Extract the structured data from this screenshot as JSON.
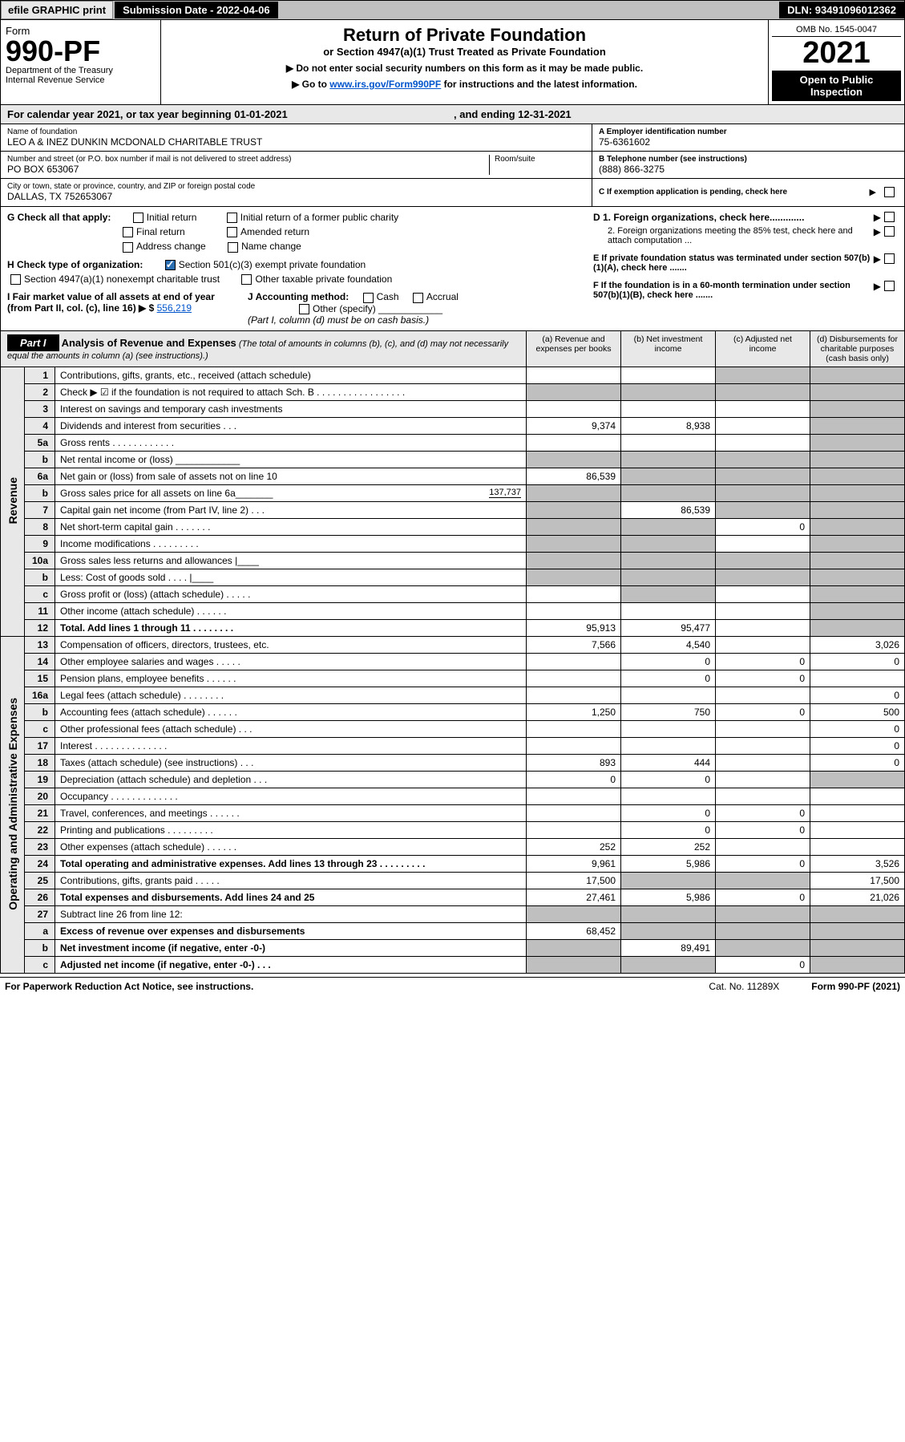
{
  "topbar": {
    "efile": "efile GRAPHIC print",
    "subdate": "Submission Date - 2022-04-06",
    "dln": "DLN: 93491096012362"
  },
  "header": {
    "form_label": "Form",
    "form_no": "990-PF",
    "dept": "Department of the Treasury",
    "irs": "Internal Revenue Service",
    "title": "Return of Private Foundation",
    "subtitle": "or Section 4947(a)(1) Trust Treated as Private Foundation",
    "note1": "▶ Do not enter social security numbers on this form as it may be made public.",
    "note2_pre": "▶ Go to ",
    "note2_link": "www.irs.gov/Form990PF",
    "note2_post": " for instructions and the latest information.",
    "omb": "OMB No. 1545-0047",
    "year": "2021",
    "inspect": "Open to Public Inspection"
  },
  "calyear": {
    "text_pre": "For calendar year 2021, or tax year beginning ",
    "begin": "01-01-2021",
    "text_mid": ", and ending ",
    "end": "12-31-2021"
  },
  "info": {
    "name_lbl": "Name of foundation",
    "name": "LEO A & INEZ DUNKIN MCDONALD CHARITABLE TRUST",
    "addr_lbl": "Number and street (or P.O. box number if mail is not delivered to street address)",
    "addr": "PO BOX 653067",
    "room_lbl": "Room/suite",
    "city_lbl": "City or town, state or province, country, and ZIP or foreign postal code",
    "city": "DALLAS, TX  752653067",
    "a_lbl": "A Employer identification number",
    "a_val": "75-6361602",
    "b_lbl": "B Telephone number (see instructions)",
    "b_val": "(888) 866-3275",
    "c_lbl": "C If exemption application is pending, check here"
  },
  "sectG": {
    "g": "G Check all that apply:",
    "init": "Initial return",
    "initf": "Initial return of a former public charity",
    "final": "Final return",
    "amend": "Amended return",
    "addr": "Address change",
    "namec": "Name change",
    "h": "H Check type of organization:",
    "h1": "Section 501(c)(3) exempt private foundation",
    "h2": "Section 4947(a)(1) nonexempt charitable trust",
    "h3": "Other taxable private foundation",
    "i": "I Fair market value of all assets at end of year (from Part II, col. (c), line 16)  ▶ $",
    "i_val": "556,219",
    "j": "J Accounting method:",
    "j1": "Cash",
    "j2": "Accrual",
    "j3": "Other (specify)",
    "j_note": "(Part I, column (d) must be on cash basis.)",
    "d1": "D 1. Foreign organizations, check here.............",
    "d2": "2. Foreign organizations meeting the 85% test, check here and attach computation ...",
    "e": "E If private foundation status was terminated under section 507(b)(1)(A), check here .......",
    "f": "F If the foundation is in a 60-month termination under section 507(b)(1)(B), check here ......."
  },
  "part1": {
    "hdr": "Part I",
    "title": "Analysis of Revenue and Expenses",
    "title_note": " (The total of amounts in columns (b), (c), and (d) may not necessarily equal the amounts in column (a) (see instructions).)",
    "col_a": "(a) Revenue and expenses per books",
    "col_b": "(b) Net investment income",
    "col_c": "(c) Adjusted net income",
    "col_d": "(d) Disbursements for charitable purposes (cash basis only)",
    "sidecats": {
      "rev": "Revenue",
      "exp": "Operating and Administrative Expenses"
    }
  },
  "rows": [
    {
      "cat": "rev",
      "ln": "1",
      "desc": "Contributions, gifts, grants, etc., received (attach schedule)",
      "a": "",
      "b": "",
      "c": "s",
      "d": "s"
    },
    {
      "cat": "rev",
      "ln": "2",
      "desc": "Check ▶ ☑ if the foundation is not required to attach Sch. B  .  .  .  .  .  .  .  .  .  .  .  .  .  .  .  .  .",
      "a": "s",
      "b": "s",
      "c": "s",
      "d": "s",
      "bold_not": true
    },
    {
      "cat": "rev",
      "ln": "3",
      "desc": "Interest on savings and temporary cash investments",
      "a": "",
      "b": "",
      "c": "",
      "d": "s"
    },
    {
      "cat": "rev",
      "ln": "4",
      "desc": "Dividends and interest from securities  .  .  .",
      "a": "9,374",
      "b": "8,938",
      "c": "",
      "d": "s"
    },
    {
      "cat": "rev",
      "ln": "5a",
      "desc": "Gross rents  .  .  .  .  .  .  .  .  .  .  .  .",
      "a": "",
      "b": "",
      "c": "",
      "d": "s"
    },
    {
      "cat": "rev",
      "ln": "b",
      "desc": "Net rental income or (loss)  ____________",
      "a": "s",
      "b": "s",
      "c": "s",
      "d": "s"
    },
    {
      "cat": "rev",
      "ln": "6a",
      "desc": "Net gain or (loss) from sale of assets not on line 10",
      "a": "86,539",
      "b": "s",
      "c": "s",
      "d": "s"
    },
    {
      "cat": "rev",
      "ln": "b",
      "desc": "Gross sales price for all assets on line 6a_______",
      "inline": "137,737",
      "a": "s",
      "b": "s",
      "c": "s",
      "d": "s"
    },
    {
      "cat": "rev",
      "ln": "7",
      "desc": "Capital gain net income (from Part IV, line 2)  .  .  .",
      "a": "s",
      "b": "86,539",
      "c": "s",
      "d": "s"
    },
    {
      "cat": "rev",
      "ln": "8",
      "desc": "Net short-term capital gain  .  .  .  .  .  .  .",
      "a": "s",
      "b": "s",
      "c": "0",
      "d": "s"
    },
    {
      "cat": "rev",
      "ln": "9",
      "desc": "Income modifications  .  .  .  .  .  .  .  .  .",
      "a": "s",
      "b": "s",
      "c": "",
      "d": "s"
    },
    {
      "cat": "rev",
      "ln": "10a",
      "desc": "Gross sales less returns and allowances  |____",
      "a": "s",
      "b": "s",
      "c": "s",
      "d": "s"
    },
    {
      "cat": "rev",
      "ln": "b",
      "desc": "Less: Cost of goods sold  .  .  .  .  |____",
      "a": "s",
      "b": "s",
      "c": "s",
      "d": "s"
    },
    {
      "cat": "rev",
      "ln": "c",
      "desc": "Gross profit or (loss) (attach schedule)  .  .  .  .  .",
      "a": "",
      "b": "s",
      "c": "",
      "d": "s"
    },
    {
      "cat": "rev",
      "ln": "11",
      "desc": "Other income (attach schedule)  .  .  .  .  .  .",
      "a": "",
      "b": "",
      "c": "",
      "d": "s"
    },
    {
      "cat": "rev",
      "ln": "12",
      "desc": "Total. Add lines 1 through 11  .  .  .  .  .  .  .  .",
      "a": "95,913",
      "b": "95,477",
      "c": "",
      "d": "s",
      "bold": true
    },
    {
      "cat": "exp",
      "ln": "13",
      "desc": "Compensation of officers, directors, trustees, etc.",
      "a": "7,566",
      "b": "4,540",
      "c": "",
      "d": "3,026"
    },
    {
      "cat": "exp",
      "ln": "14",
      "desc": "Other employee salaries and wages  .  .  .  .  .",
      "a": "",
      "b": "0",
      "c": "0",
      "d": "0"
    },
    {
      "cat": "exp",
      "ln": "15",
      "desc": "Pension plans, employee benefits  .  .  .  .  .  .",
      "a": "",
      "b": "0",
      "c": "0",
      "d": ""
    },
    {
      "cat": "exp",
      "ln": "16a",
      "desc": "Legal fees (attach schedule)  .  .  .  .  .  .  .  .",
      "a": "",
      "b": "",
      "c": "",
      "d": "0"
    },
    {
      "cat": "exp",
      "ln": "b",
      "desc": "Accounting fees (attach schedule)  .  .  .  .  .  .",
      "a": "1,250",
      "b": "750",
      "c": "0",
      "d": "500"
    },
    {
      "cat": "exp",
      "ln": "c",
      "desc": "Other professional fees (attach schedule)  .  .  .",
      "a": "",
      "b": "",
      "c": "",
      "d": "0"
    },
    {
      "cat": "exp",
      "ln": "17",
      "desc": "Interest  .  .  .  .  .  .  .  .  .  .  .  .  .  .",
      "a": "",
      "b": "",
      "c": "",
      "d": "0"
    },
    {
      "cat": "exp",
      "ln": "18",
      "desc": "Taxes (attach schedule) (see instructions)  .  .  .",
      "a": "893",
      "b": "444",
      "c": "",
      "d": "0"
    },
    {
      "cat": "exp",
      "ln": "19",
      "desc": "Depreciation (attach schedule) and depletion  .  .  .",
      "a": "0",
      "b": "0",
      "c": "",
      "d": "s"
    },
    {
      "cat": "exp",
      "ln": "20",
      "desc": "Occupancy  .  .  .  .  .  .  .  .  .  .  .  .  .",
      "a": "",
      "b": "",
      "c": "",
      "d": ""
    },
    {
      "cat": "exp",
      "ln": "21",
      "desc": "Travel, conferences, and meetings  .  .  .  .  .  .",
      "a": "",
      "b": "0",
      "c": "0",
      "d": ""
    },
    {
      "cat": "exp",
      "ln": "22",
      "desc": "Printing and publications  .  .  .  .  .  .  .  .  .",
      "a": "",
      "b": "0",
      "c": "0",
      "d": ""
    },
    {
      "cat": "exp",
      "ln": "23",
      "desc": "Other expenses (attach schedule)  .  .  .  .  .  .",
      "a": "252",
      "b": "252",
      "c": "",
      "d": ""
    },
    {
      "cat": "exp",
      "ln": "24",
      "desc": "Total operating and administrative expenses. Add lines 13 through 23  .  .  .  .  .  .  .  .  .",
      "a": "9,961",
      "b": "5,986",
      "c": "0",
      "d": "3,526",
      "bold": true
    },
    {
      "cat": "exp",
      "ln": "25",
      "desc": "Contributions, gifts, grants paid  .  .  .  .  .",
      "a": "17,500",
      "b": "s",
      "c": "s",
      "d": "17,500"
    },
    {
      "cat": "exp",
      "ln": "26",
      "desc": "Total expenses and disbursements. Add lines 24 and 25",
      "a": "27,461",
      "b": "5,986",
      "c": "0",
      "d": "21,026",
      "bold": true
    },
    {
      "cat": "exp",
      "ln": "27",
      "desc": "Subtract line 26 from line 12:",
      "a": "s",
      "b": "s",
      "c": "s",
      "d": "s"
    },
    {
      "cat": "exp",
      "ln": "a",
      "desc": "Excess of revenue over expenses and disbursements",
      "a": "68,452",
      "b": "s",
      "c": "s",
      "d": "s",
      "bold": true
    },
    {
      "cat": "exp",
      "ln": "b",
      "desc": "Net investment income (if negative, enter -0-)",
      "a": "s",
      "b": "89,491",
      "c": "s",
      "d": "s",
      "bold": true
    },
    {
      "cat": "exp",
      "ln": "c",
      "desc": "Adjusted net income (if negative, enter -0-)  .  .  .",
      "a": "s",
      "b": "s",
      "c": "0",
      "d": "s",
      "bold": true
    }
  ],
  "footer": {
    "left": "For Paperwork Reduction Act Notice, see instructions.",
    "mid": "Cat. No. 11289X",
    "right": "Form 990-PF (2021)"
  },
  "colors": {
    "header_bg": "#e8e8e8",
    "shade": "#bfbfbf",
    "link": "#0055cc",
    "checkbox_fill": "#2a6db0"
  }
}
